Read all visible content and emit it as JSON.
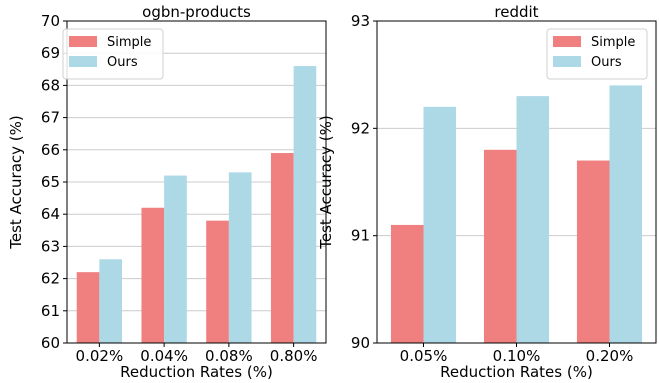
{
  "chart_data": [
    {
      "type": "bar",
      "title": "ogbn-products",
      "xlabel": "Reduction Rates (%)",
      "ylabel": "Test Accuracy (%)",
      "categories": [
        "0.02%",
        "0.04%",
        "0.08%",
        "0.80%"
      ],
      "ylim": [
        60,
        70
      ],
      "yticks": [
        "60",
        "61",
        "62",
        "63",
        "64",
        "65",
        "66",
        "67",
        "68",
        "69",
        "70"
      ],
      "grid": true,
      "legend_position": "top-left",
      "series": [
        {
          "name": "Simple",
          "color": "#f08080",
          "values": [
            62.2,
            64.2,
            63.8,
            65.9
          ]
        },
        {
          "name": "Ours",
          "color": "#add8e6",
          "values": [
            62.6,
            65.2,
            65.3,
            68.6
          ]
        }
      ]
    },
    {
      "type": "bar",
      "title": "reddit",
      "xlabel": "Reduction Rates (%)",
      "ylabel": "Test Accuracy (%)",
      "categories": [
        "0.05%",
        "0.10%",
        "0.20%"
      ],
      "ylim": [
        90,
        93
      ],
      "yticks": [
        "90",
        "91",
        "92",
        "93"
      ],
      "grid": true,
      "legend_position": "top-right",
      "series": [
        {
          "name": "Simple",
          "color": "#f08080",
          "values": [
            91.1,
            91.8,
            91.7
          ]
        },
        {
          "name": "Ours",
          "color": "#add8e6",
          "values": [
            92.2,
            92.3,
            92.4
          ]
        }
      ]
    }
  ]
}
